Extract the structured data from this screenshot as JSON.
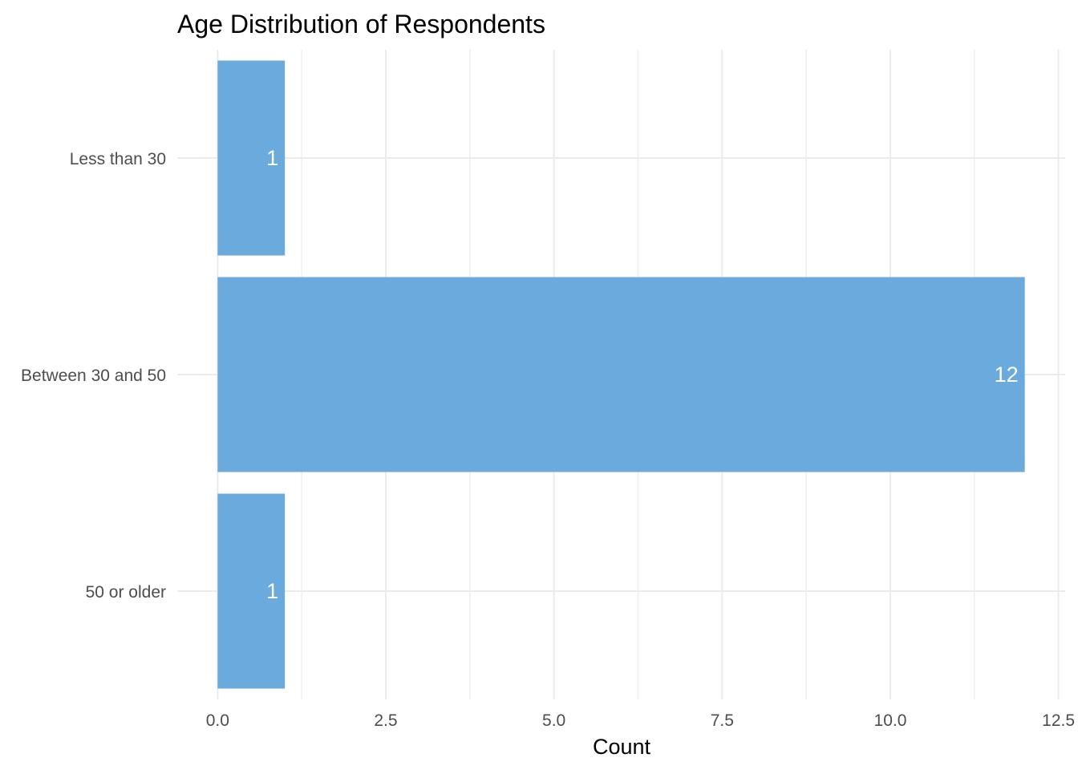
{
  "chart_data": {
    "type": "bar",
    "orientation": "horizontal",
    "title": "Age Distribution of Respondents",
    "xlabel": "Count",
    "ylabel": "",
    "categories": [
      "Less than 30",
      "Between 30 and 50",
      "50 or older"
    ],
    "values": [
      1,
      12,
      1
    ],
    "data_labels": [
      "1",
      "12",
      "1"
    ],
    "xlim": [
      0,
      12.5
    ],
    "x_ticks": [
      0,
      2.5,
      5,
      7.5,
      10,
      12.5
    ],
    "x_tick_labels": [
      "0.0",
      "2.5",
      "5.0",
      "7.5",
      "10.0",
      "12.5"
    ],
    "x_minor_ticks": [
      1.25,
      3.75,
      6.25,
      8.75,
      11.25
    ],
    "grid": true,
    "legend": "none",
    "bar_color": "#6AAADD",
    "label_color": "#FFFFFF",
    "grid_color": "#EBEBEB"
  }
}
